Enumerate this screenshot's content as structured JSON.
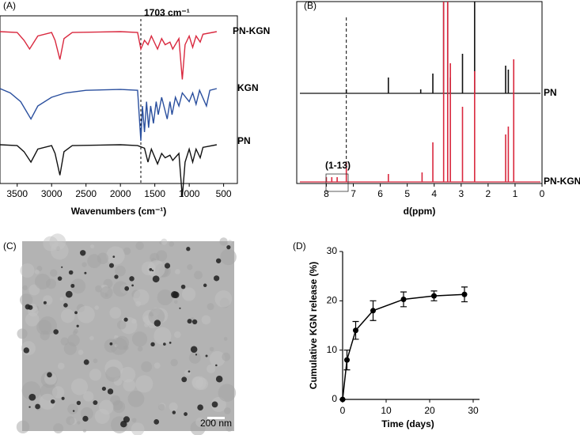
{
  "chart_data": [
    {
      "type": "line",
      "panel": "(A)",
      "xlabel": "Wavenumbers (cm⁻¹)",
      "annotation": "1703 cm⁻¹",
      "marker_x": 1703,
      "xlim": [
        3750,
        300
      ],
      "xticks": [
        3500,
        3000,
        2500,
        2000,
        1500,
        1000,
        500
      ],
      "series": [
        {
          "name": "PN-KGN",
          "color": "#d9283e",
          "x": [
            3750,
            3500,
            3400,
            3320,
            3200,
            3000,
            2950,
            2880,
            2820,
            2700,
            2000,
            1750,
            1703,
            1650,
            1600,
            1550,
            1460,
            1400,
            1350,
            1280,
            1240,
            1150,
            1100,
            1060,
            1000,
            950,
            900,
            840,
            800,
            600
          ],
          "values": [
            100,
            99,
            90,
            80,
            95,
            99,
            90,
            68,
            92,
            99,
            100,
            99,
            80,
            90,
            85,
            95,
            80,
            92,
            85,
            88,
            80,
            92,
            45,
            85,
            95,
            82,
            95,
            88,
            97,
            100
          ]
        },
        {
          "name": "KGN",
          "color": "#2a4f9e",
          "x": [
            3750,
            3600,
            3450,
            3300,
            3200,
            3000,
            2800,
            2500,
            2000,
            1750,
            1703,
            1680,
            1650,
            1620,
            1590,
            1560,
            1520,
            1480,
            1450,
            1400,
            1320,
            1280,
            1250,
            1200,
            1150,
            1100,
            1000,
            950,
            900,
            850,
            750,
            700,
            600
          ],
          "values": [
            100,
            95,
            85,
            65,
            80,
            90,
            95,
            98,
            99,
            98,
            40,
            80,
            50,
            85,
            55,
            80,
            60,
            85,
            70,
            90,
            65,
            85,
            70,
            90,
            80,
            95,
            85,
            95,
            82,
            98,
            80,
            98,
            100
          ]
        },
        {
          "name": "PN",
          "color": "#111111",
          "x": [
            3750,
            3500,
            3400,
            3300,
            3200,
            3000,
            2950,
            2880,
            2820,
            2700,
            2000,
            1750,
            1650,
            1600,
            1550,
            1460,
            1400,
            1350,
            1280,
            1240,
            1150,
            1100,
            1060,
            1000,
            950,
            900,
            840,
            800,
            600
          ],
          "values": [
            100,
            99,
            92,
            80,
            95,
            99,
            90,
            65,
            92,
            99,
            100,
            99,
            96,
            80,
            95,
            78,
            90,
            85,
            88,
            82,
            90,
            40,
            80,
            95,
            80,
            95,
            85,
            97,
            100
          ]
        }
      ]
    },
    {
      "type": "spike",
      "panel": "(B)",
      "xlabel": "d(ppm)",
      "annotation": "(1-13)",
      "marker_x": 7.26,
      "xlim": [
        9.1,
        0
      ],
      "xticks": [
        8,
        7,
        6,
        5,
        4,
        3,
        2,
        1,
        0
      ],
      "series": [
        {
          "name": "PN",
          "color": "#111111",
          "x": [
            7.26,
            5.7,
            4.5,
            4.05,
            3.65,
            3.5,
            3.4,
            2.95,
            2.5,
            1.35,
            1.25
          ],
          "values": [
            5,
            20,
            5,
            25,
            120,
            120,
            20,
            50,
            118,
            35,
            30
          ]
        },
        {
          "name": "PN-KGN",
          "color": "#d9283e",
          "x": [
            8.0,
            7.8,
            7.6,
            7.26,
            5.7,
            4.45,
            4.05,
            3.65,
            3.5,
            3.4,
            2.95,
            2.5,
            1.35,
            1.25,
            1.05
          ],
          "values": [
            6,
            6,
            6,
            25,
            10,
            12,
            50,
            230,
            230,
            150,
            95,
            140,
            60,
            70,
            155
          ]
        }
      ]
    },
    {
      "type": "image",
      "panel": "(C)",
      "scale_bar": "200 nm"
    },
    {
      "type": "errorline",
      "panel": "(D)",
      "xlabel": "Time (days)",
      "ylabel": "Cumulative KGN release (%)",
      "xlim": [
        0,
        30
      ],
      "xticks": [
        0,
        10,
        20,
        30
      ],
      "ylim": [
        0,
        30
      ],
      "yticks": [
        0,
        10,
        20,
        30
      ],
      "series": [
        {
          "color": "#000000",
          "x": [
            0,
            1,
            3,
            7,
            14,
            21,
            28
          ],
          "values": [
            0,
            8,
            14,
            18,
            20.3,
            21,
            21.3
          ],
          "errors": [
            0,
            2,
            1.8,
            2,
            1.5,
            1,
            1.5
          ]
        }
      ]
    }
  ]
}
